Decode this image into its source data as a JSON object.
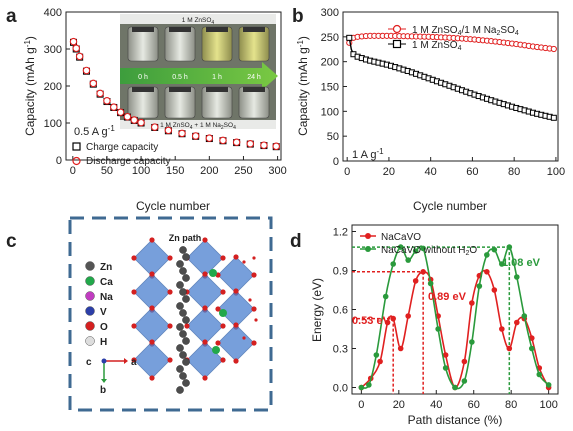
{
  "panels": {
    "a": {
      "label": "a",
      "xlabel": "Cycle number",
      "ylabel": "Capacity (mAh g",
      "ylabel_sup": "-1",
      "ylabel_end": ")",
      "rate": "0.5 A g",
      "rate_sup": "-1",
      "legend": [
        "Charge capacity",
        "Discharge capacity"
      ],
      "inset": {
        "top_label": "1 M ZnSO",
        "top_label_sub": "4",
        "bottom_label": "1 M ZnSO",
        "bottom_label_sub1": "4",
        "bottom_label_mid": " + 1 M Na",
        "bottom_label_sub2": "2",
        "bottom_label_mid2": "SO",
        "bottom_label_sub3": "4",
        "times": [
          "0 h",
          "0.5 h",
          "1 h",
          "24 h"
        ]
      }
    },
    "b": {
      "label": "b",
      "xlabel": "Cycle number",
      "ylabel": "Capacity (mAh g",
      "ylabel_sup": "-1",
      "ylabel_end": ")",
      "rate": "1 A g",
      "rate_sup": "-1",
      "legend": [
        "1 M ZnSO4/1 M Na2SO4",
        "1 M ZnSO4"
      ]
    },
    "c": {
      "label": "c",
      "path_label": "Zn path",
      "species": [
        "Zn",
        "Ca",
        "Na",
        "V",
        "O",
        "H"
      ],
      "species_colors": [
        "#555555",
        "#22a84a",
        "#c03cc0",
        "#2c3fa8",
        "#d42020",
        "#dddddd"
      ],
      "axes": [
        "c",
        "a",
        "b"
      ]
    },
    "d": {
      "label": "d",
      "xlabel": "Path distance (%)",
      "ylabel": "Energy (eV)",
      "legend": [
        "NaCaVO",
        "NaCaVO without H"
      ],
      "legend_sub": "2",
      "legend_tail": "O",
      "annotations": [
        "1.08 eV",
        "0.89 eV",
        "0.53 eV"
      ]
    }
  },
  "chart_data": [
    {
      "type": "scatter",
      "panel": "a",
      "xlim": [
        -10,
        305
      ],
      "ylim": [
        0,
        400
      ],
      "xticks": [
        0,
        50,
        100,
        150,
        200,
        250,
        300
      ],
      "yticks": [
        0,
        100,
        200,
        300,
        400
      ],
      "series": [
        {
          "name": "Charge capacity",
          "color": "#000000",
          "points": [
            [
              1,
              318
            ],
            [
              5,
              300
            ],
            [
              10,
              278
            ],
            [
              20,
              240
            ],
            [
              30,
              205
            ],
            [
              40,
              178
            ],
            [
              50,
              158
            ],
            [
              60,
              142
            ],
            [
              70,
              128
            ],
            [
              80,
              116
            ],
            [
              90,
              107
            ],
            [
              100,
              100
            ],
            [
              120,
              88
            ],
            [
              140,
              79
            ],
            [
              160,
              71
            ],
            [
              180,
              64
            ],
            [
              200,
              58
            ],
            [
              220,
              52
            ],
            [
              240,
              47
            ],
            [
              260,
              43
            ],
            [
              280,
              39
            ],
            [
              298,
              36
            ]
          ]
        },
        {
          "name": "Discharge capacity",
          "color": "#e02020",
          "points": [
            [
              1,
              320
            ],
            [
              5,
              302
            ],
            [
              10,
              280
            ],
            [
              20,
              242
            ],
            [
              30,
              207
            ],
            [
              40,
              180
            ],
            [
              50,
              160
            ],
            [
              60,
              143
            ],
            [
              70,
              129
            ],
            [
              80,
              117
            ],
            [
              90,
              108
            ],
            [
              100,
              101
            ],
            [
              120,
              89
            ],
            [
              140,
              80
            ],
            [
              160,
              72
            ],
            [
              180,
              65
            ],
            [
              200,
              59
            ],
            [
              220,
              53
            ],
            [
              240,
              48
            ],
            [
              260,
              44
            ],
            [
              280,
              40
            ],
            [
              298,
              37
            ]
          ]
        }
      ]
    },
    {
      "type": "line",
      "panel": "b",
      "xlim": [
        -2,
        101
      ],
      "ylim": [
        0,
        300
      ],
      "xticks": [
        0,
        20,
        40,
        60,
        80,
        100
      ],
      "yticks": [
        0,
        50,
        100,
        150,
        200,
        250,
        300
      ],
      "series": [
        {
          "name": "1 M ZnSO4/1 M Na2SO4",
          "color": "#e02020",
          "points": [
            [
              1,
              238
            ],
            [
              2,
              245
            ],
            [
              3,
              248
            ],
            [
              5,
              250
            ],
            [
              10,
              252
            ],
            [
              20,
              252
            ],
            [
              30,
              251
            ],
            [
              40,
              250
            ],
            [
              50,
              248
            ],
            [
              60,
              245
            ],
            [
              70,
              241
            ],
            [
              80,
              236
            ],
            [
              90,
              230
            ],
            [
              100,
              225
            ]
          ]
        },
        {
          "name": "1 M ZnSO4",
          "color": "#000000",
          "points": [
            [
              1,
              248
            ],
            [
              2,
              225
            ],
            [
              3,
              215
            ],
            [
              5,
              210
            ],
            [
              10,
              203
            ],
            [
              20,
              193
            ],
            [
              30,
              180
            ],
            [
              40,
              165
            ],
            [
              50,
              150
            ],
            [
              60,
              135
            ],
            [
              70,
              121
            ],
            [
              80,
              108
            ],
            [
              90,
              96
            ],
            [
              100,
              86
            ]
          ]
        }
      ]
    },
    {
      "type": "line",
      "panel": "d",
      "xlim": [
        -5,
        105
      ],
      "ylim": [
        -0.05,
        1.25
      ],
      "xticks": [
        0,
        20,
        40,
        60,
        80,
        100
      ],
      "yticks": [
        0.0,
        0.3,
        0.6,
        0.9,
        1.2
      ],
      "hlines": [
        1.08,
        0.89,
        0.53
      ],
      "vlines": [
        17,
        33,
        79
      ],
      "series": [
        {
          "name": "NaCaVO",
          "color": "#e02020",
          "points": [
            [
              0,
              0
            ],
            [
              5,
              0.07
            ],
            [
              10,
              0.2
            ],
            [
              14,
              0.5
            ],
            [
              17,
              0.53
            ],
            [
              21,
              0.3
            ],
            [
              25,
              0.55
            ],
            [
              29,
              0.82
            ],
            [
              33,
              0.89
            ],
            [
              37,
              0.83
            ],
            [
              41,
              0.55
            ],
            [
              45,
              0.25
            ],
            [
              50,
              0
            ],
            [
              55,
              0.2
            ],
            [
              59,
              0.65
            ],
            [
              63,
              0.86
            ],
            [
              67,
              0.89
            ],
            [
              71,
              0.75
            ],
            [
              75,
              0.45
            ],
            [
              79,
              0.3
            ],
            [
              83,
              0.5
            ],
            [
              87,
              0.53
            ],
            [
              91,
              0.38
            ],
            [
              95,
              0.15
            ],
            [
              100,
              0
            ]
          ]
        },
        {
          "name": "NaCaVO without H2O",
          "color": "#2a9a3c",
          "points": [
            [
              0,
              0
            ],
            [
              4,
              0.02
            ],
            [
              8,
              0.25
            ],
            [
              13,
              0.7
            ],
            [
              17,
              0.95
            ],
            [
              21,
              1.08
            ],
            [
              25,
              0.98
            ],
            [
              29,
              1.05
            ],
            [
              33,
              1.07
            ],
            [
              37,
              0.8
            ],
            [
              41,
              0.45
            ],
            [
              45,
              0.15
            ],
            [
              50,
              0
            ],
            [
              55,
              0.05
            ],
            [
              59,
              0.35
            ],
            [
              63,
              0.78
            ],
            [
              67,
              1.02
            ],
            [
              71,
              1.06
            ],
            [
              75,
              0.95
            ],
            [
              79,
              1.08
            ],
            [
              83,
              0.85
            ],
            [
              87,
              0.55
            ],
            [
              91,
              0.3
            ],
            [
              95,
              0.1
            ],
            [
              100,
              0.02
            ]
          ]
        }
      ]
    }
  ]
}
